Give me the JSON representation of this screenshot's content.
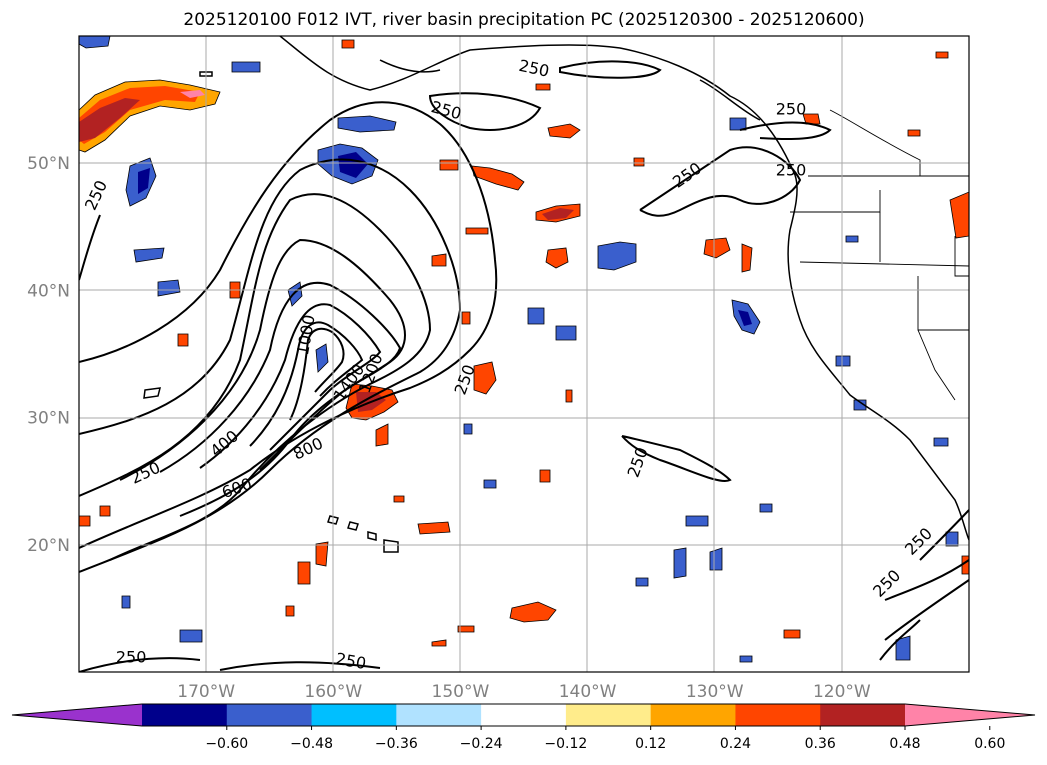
{
  "title": "2025120100 F012 IVT, river basin precipitation PC (2025120300 - 2025120600)",
  "lat_labels": [
    {
      "id": "50n",
      "lat": 50,
      "text": "50°N"
    },
    {
      "id": "40n",
      "lat": 40,
      "text": "40°N"
    },
    {
      "id": "30n",
      "lat": 30,
      "text": "30°N"
    },
    {
      "id": "20n",
      "lat": 20,
      "text": "20°N"
    }
  ],
  "lon_labels": [
    {
      "id": "170w",
      "lon": -170,
      "text": "170°W"
    },
    {
      "id": "160w",
      "lon": -160,
      "text": "160°W"
    },
    {
      "id": "150w",
      "lon": -150,
      "text": "150°W"
    },
    {
      "id": "140w",
      "lon": -140,
      "text": "140°W"
    },
    {
      "id": "130w",
      "lon": -130,
      "text": "130°W"
    },
    {
      "id": "120w",
      "lon": -120,
      "text": "120°W"
    }
  ],
  "extent": {
    "lon_min": -180,
    "lon_max": -110,
    "lat_min": 10,
    "lat_max": 60
  },
  "colorbar": {
    "colors": [
      "#9a32cd",
      "#00008b",
      "#3a5fcd",
      "#00bfff",
      "#b0e2ff",
      "#ffffff",
      "#ffec8b",
      "#ffa500",
      "#ff4500",
      "#b22222",
      "#ff83a8"
    ],
    "boundaries": [
      -0.6,
      -0.48,
      -0.36,
      -0.24,
      -0.12,
      0.12,
      0.24,
      0.36,
      0.48,
      0.6
    ],
    "tick_labels": [
      "−0.60",
      "−0.48",
      "−0.36",
      "−0.24",
      "−0.12",
      "0.12",
      "0.24",
      "0.36",
      "0.48",
      "0.60"
    ]
  },
  "contour_labels": [
    {
      "id": "250-a",
      "text": "250",
      "lon": -144.2,
      "lat": 57.5,
      "rot": 12
    },
    {
      "id": "250-b",
      "text": "250",
      "lon": -151.1,
      "lat": 54.2,
      "rot": 15
    },
    {
      "id": "250-c",
      "text": "250",
      "lon": -124.0,
      "lat": 54.3,
      "rot": 0
    },
    {
      "id": "250-d",
      "text": "250",
      "lon": -132.2,
      "lat": 49.1,
      "rot": -35
    },
    {
      "id": "250-e",
      "text": "250",
      "lon": -124.0,
      "lat": 49.5,
      "rot": 0
    },
    {
      "id": "250-f",
      "text": "250",
      "lon": -178.7,
      "lat": 47.5,
      "rot": -65
    },
    {
      "id": "1000",
      "text": "1000",
      "lon": -162.2,
      "lat": 36.5,
      "rot": -80
    },
    {
      "id": "1400",
      "text": "1400",
      "lon": -158.8,
      "lat": 32.8,
      "rot": -55
    },
    {
      "id": "1200",
      "text": "1200",
      "lon": -157.1,
      "lat": 33.5,
      "rot": -70
    },
    {
      "id": "250-g",
      "text": "250",
      "lon": -149.7,
      "lat": 33.0,
      "rot": -70
    },
    {
      "id": "400",
      "text": "400",
      "lon": -168.6,
      "lat": 28.0,
      "rot": -40
    },
    {
      "id": "800",
      "text": "800",
      "lon": -162.0,
      "lat": 27.6,
      "rot": -25
    },
    {
      "id": "250-h",
      "text": "250",
      "lon": -174.8,
      "lat": 25.7,
      "rot": -25
    },
    {
      "id": "600",
      "text": "600",
      "lon": -167.6,
      "lat": 24.5,
      "rot": -20
    },
    {
      "id": "250-i",
      "text": "250",
      "lon": -136.1,
      "lat": 26.5,
      "rot": -70
    },
    {
      "id": "250-j",
      "text": "250",
      "lon": -114.0,
      "lat": 20.3,
      "rot": -45
    },
    {
      "id": "250-k",
      "text": "250",
      "lon": -116.5,
      "lat": 17.0,
      "rot": -45
    },
    {
      "id": "250-l",
      "text": "250",
      "lon": -175.9,
      "lat": 11.2,
      "rot": 0
    },
    {
      "id": "250-m",
      "text": "250",
      "lon": -158.6,
      "lat": 10.9,
      "rot": 10
    }
  ]
}
